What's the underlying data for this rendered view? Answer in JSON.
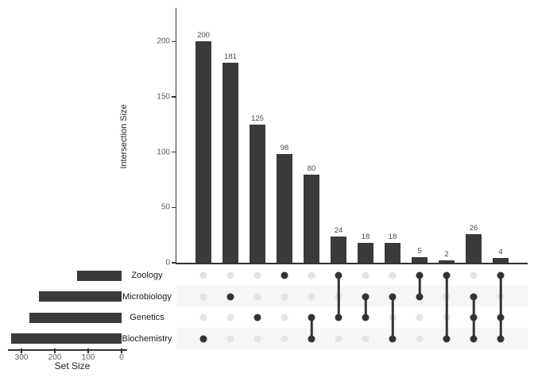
{
  "colors": {
    "bar": "#3a3a3a",
    "dot_active": "#333333",
    "dot_inactive": "#e4e4e4",
    "stripe": "#f6f6f6",
    "axis": "#333333",
    "tick_label": "#5e5e5e",
    "value_label": "#4a4a4a",
    "set_label": "#1a1a1a"
  },
  "chart_data": {
    "type": "upset",
    "intersection_chart": {
      "type": "bar",
      "ylabel": "Intersection Size",
      "yticks": [
        0,
        50,
        100,
        150,
        200
      ],
      "ylim": [
        0,
        230
      ],
      "grid": false,
      "values": [
        200,
        181,
        125,
        98,
        80,
        24,
        18,
        18,
        5,
        2,
        26,
        4
      ]
    },
    "sets": [
      {
        "name": "Zoology",
        "size": 133
      },
      {
        "name": "Microbiology",
        "size": 248
      },
      {
        "name": "Genetics",
        "size": 277
      },
      {
        "name": "Biochemistry",
        "size": 330
      }
    ],
    "set_size_chart": {
      "type": "bar-horizontal",
      "xlabel": "Set Size",
      "xticks": [
        300,
        200,
        100,
        0
      ],
      "xlim": [
        340,
        0
      ]
    },
    "intersections": [
      {
        "sets": [
          "Biochemistry"
        ],
        "size": 200
      },
      {
        "sets": [
          "Microbiology"
        ],
        "size": 181
      },
      {
        "sets": [
          "Genetics"
        ],
        "size": 125
      },
      {
        "sets": [
          "Zoology"
        ],
        "size": 98
      },
      {
        "sets": [
          "Genetics",
          "Biochemistry"
        ],
        "size": 80
      },
      {
        "sets": [
          "Zoology",
          "Genetics"
        ],
        "size": 24
      },
      {
        "sets": [
          "Microbiology",
          "Genetics"
        ],
        "size": 18
      },
      {
        "sets": [
          "Microbiology",
          "Biochemistry"
        ],
        "size": 18
      },
      {
        "sets": [
          "Zoology",
          "Microbiology"
        ],
        "size": 5
      },
      {
        "sets": [
          "Zoology",
          "Biochemistry"
        ],
        "size": 2
      },
      {
        "sets": [
          "Microbiology",
          "Genetics",
          "Biochemistry"
        ],
        "size": 26
      },
      {
        "sets": [
          "Zoology",
          "Genetics",
          "Biochemistry"
        ],
        "size": 4
      }
    ]
  }
}
